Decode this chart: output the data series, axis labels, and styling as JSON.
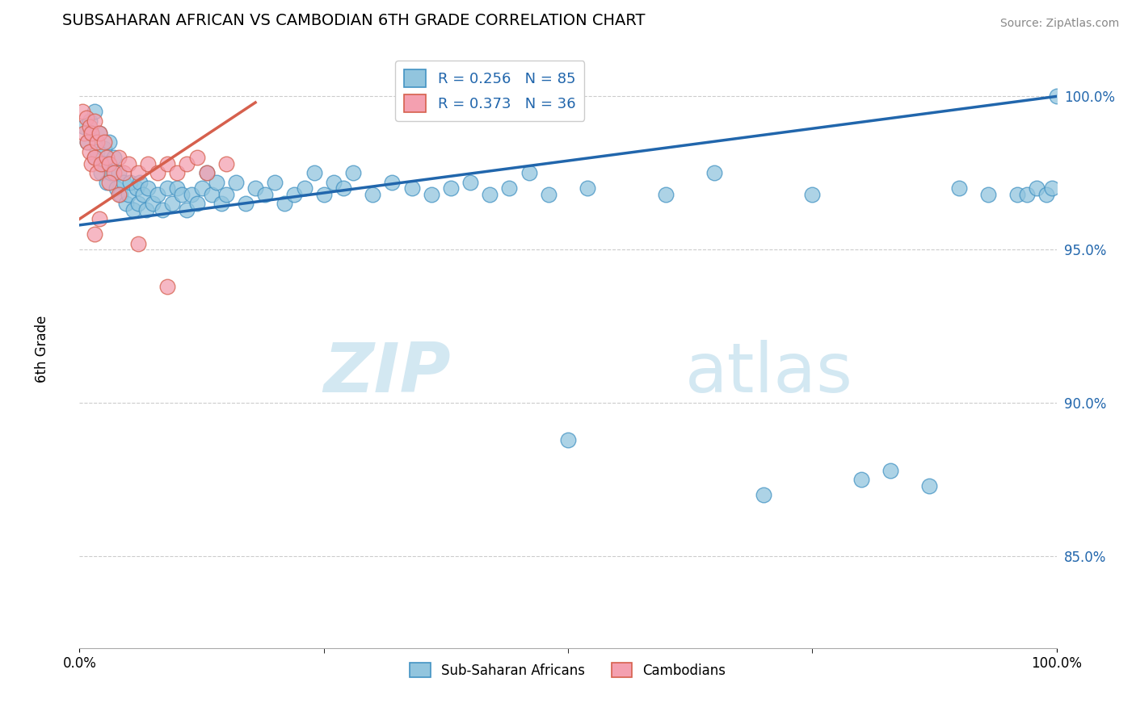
{
  "title": "SUBSAHARAN AFRICAN VS CAMBODIAN 6TH GRADE CORRELATION CHART",
  "source": "Source: ZipAtlas.com",
  "ylabel": "6th Grade",
  "ytick_labels": [
    "100.0%",
    "95.0%",
    "90.0%",
    "85.0%"
  ],
  "ytick_values": [
    1.0,
    0.95,
    0.9,
    0.85
  ],
  "legend_blue_r": "R = 0.256",
  "legend_blue_n": "N = 85",
  "legend_pink_r": "R = 0.373",
  "legend_pink_n": "N = 36",
  "blue_color": "#92c5de",
  "pink_color": "#f4a0b0",
  "blue_edge_color": "#4393c3",
  "pink_edge_color": "#d6604d",
  "blue_line_color": "#2166ac",
  "pink_line_color": "#d6604d",
  "watermark_color": "#cce4f0",
  "blue_scatter_x": [
    0.005,
    0.008,
    0.01,
    0.012,
    0.015,
    0.015,
    0.018,
    0.02,
    0.022,
    0.025,
    0.025,
    0.028,
    0.03,
    0.032,
    0.035,
    0.038,
    0.04,
    0.042,
    0.045,
    0.048,
    0.05,
    0.052,
    0.055,
    0.058,
    0.06,
    0.062,
    0.065,
    0.068,
    0.07,
    0.075,
    0.08,
    0.085,
    0.09,
    0.095,
    0.1,
    0.105,
    0.11,
    0.115,
    0.12,
    0.125,
    0.13,
    0.135,
    0.14,
    0.145,
    0.15,
    0.16,
    0.17,
    0.18,
    0.19,
    0.2,
    0.21,
    0.22,
    0.23,
    0.24,
    0.25,
    0.26,
    0.27,
    0.28,
    0.3,
    0.32,
    0.34,
    0.36,
    0.38,
    0.4,
    0.42,
    0.44,
    0.46,
    0.48,
    0.5,
    0.52,
    0.6,
    0.65,
    0.7,
    0.75,
    0.8,
    0.83,
    0.87,
    0.9,
    0.93,
    0.96,
    0.97,
    0.98,
    0.99,
    0.995,
    1.0
  ],
  "blue_scatter_y": [
    0.99,
    0.985,
    0.992,
    0.988,
    0.98,
    0.995,
    0.982,
    0.988,
    0.975,
    0.983,
    0.978,
    0.972,
    0.985,
    0.975,
    0.98,
    0.97,
    0.975,
    0.968,
    0.972,
    0.965,
    0.968,
    0.972,
    0.963,
    0.97,
    0.965,
    0.972,
    0.968,
    0.963,
    0.97,
    0.965,
    0.968,
    0.963,
    0.97,
    0.965,
    0.97,
    0.968,
    0.963,
    0.968,
    0.965,
    0.97,
    0.975,
    0.968,
    0.972,
    0.965,
    0.968,
    0.972,
    0.965,
    0.97,
    0.968,
    0.972,
    0.965,
    0.968,
    0.97,
    0.975,
    0.968,
    0.972,
    0.97,
    0.975,
    0.968,
    0.972,
    0.97,
    0.968,
    0.97,
    0.972,
    0.968,
    0.97,
    0.975,
    0.968,
    0.888,
    0.97,
    0.968,
    0.975,
    0.87,
    0.968,
    0.875,
    0.878,
    0.873,
    0.97,
    0.968,
    0.968,
    0.968,
    0.97,
    0.968,
    0.97,
    1.0
  ],
  "pink_scatter_x": [
    0.003,
    0.005,
    0.007,
    0.008,
    0.01,
    0.01,
    0.012,
    0.012,
    0.015,
    0.015,
    0.018,
    0.018,
    0.02,
    0.022,
    0.025,
    0.028,
    0.03,
    0.035,
    0.04,
    0.045,
    0.05,
    0.06,
    0.07,
    0.08,
    0.09,
    0.1,
    0.11,
    0.12,
    0.13,
    0.15,
    0.03,
    0.04,
    0.06,
    0.09,
    0.02,
    0.015
  ],
  "pink_scatter_y": [
    0.995,
    0.988,
    0.993,
    0.985,
    0.99,
    0.982,
    0.988,
    0.978,
    0.992,
    0.98,
    0.985,
    0.975,
    0.988,
    0.978,
    0.985,
    0.98,
    0.978,
    0.975,
    0.98,
    0.975,
    0.978,
    0.975,
    0.978,
    0.975,
    0.978,
    0.975,
    0.978,
    0.98,
    0.975,
    0.978,
    0.972,
    0.968,
    0.952,
    0.938,
    0.96,
    0.955
  ],
  "blue_line_x": [
    0.0,
    1.0
  ],
  "blue_line_y": [
    0.958,
    1.0
  ],
  "pink_line_x": [
    0.0,
    0.18
  ],
  "pink_line_y": [
    0.96,
    0.998
  ],
  "xlim": [
    0.0,
    1.0
  ],
  "ylim": [
    0.82,
    1.015
  ]
}
